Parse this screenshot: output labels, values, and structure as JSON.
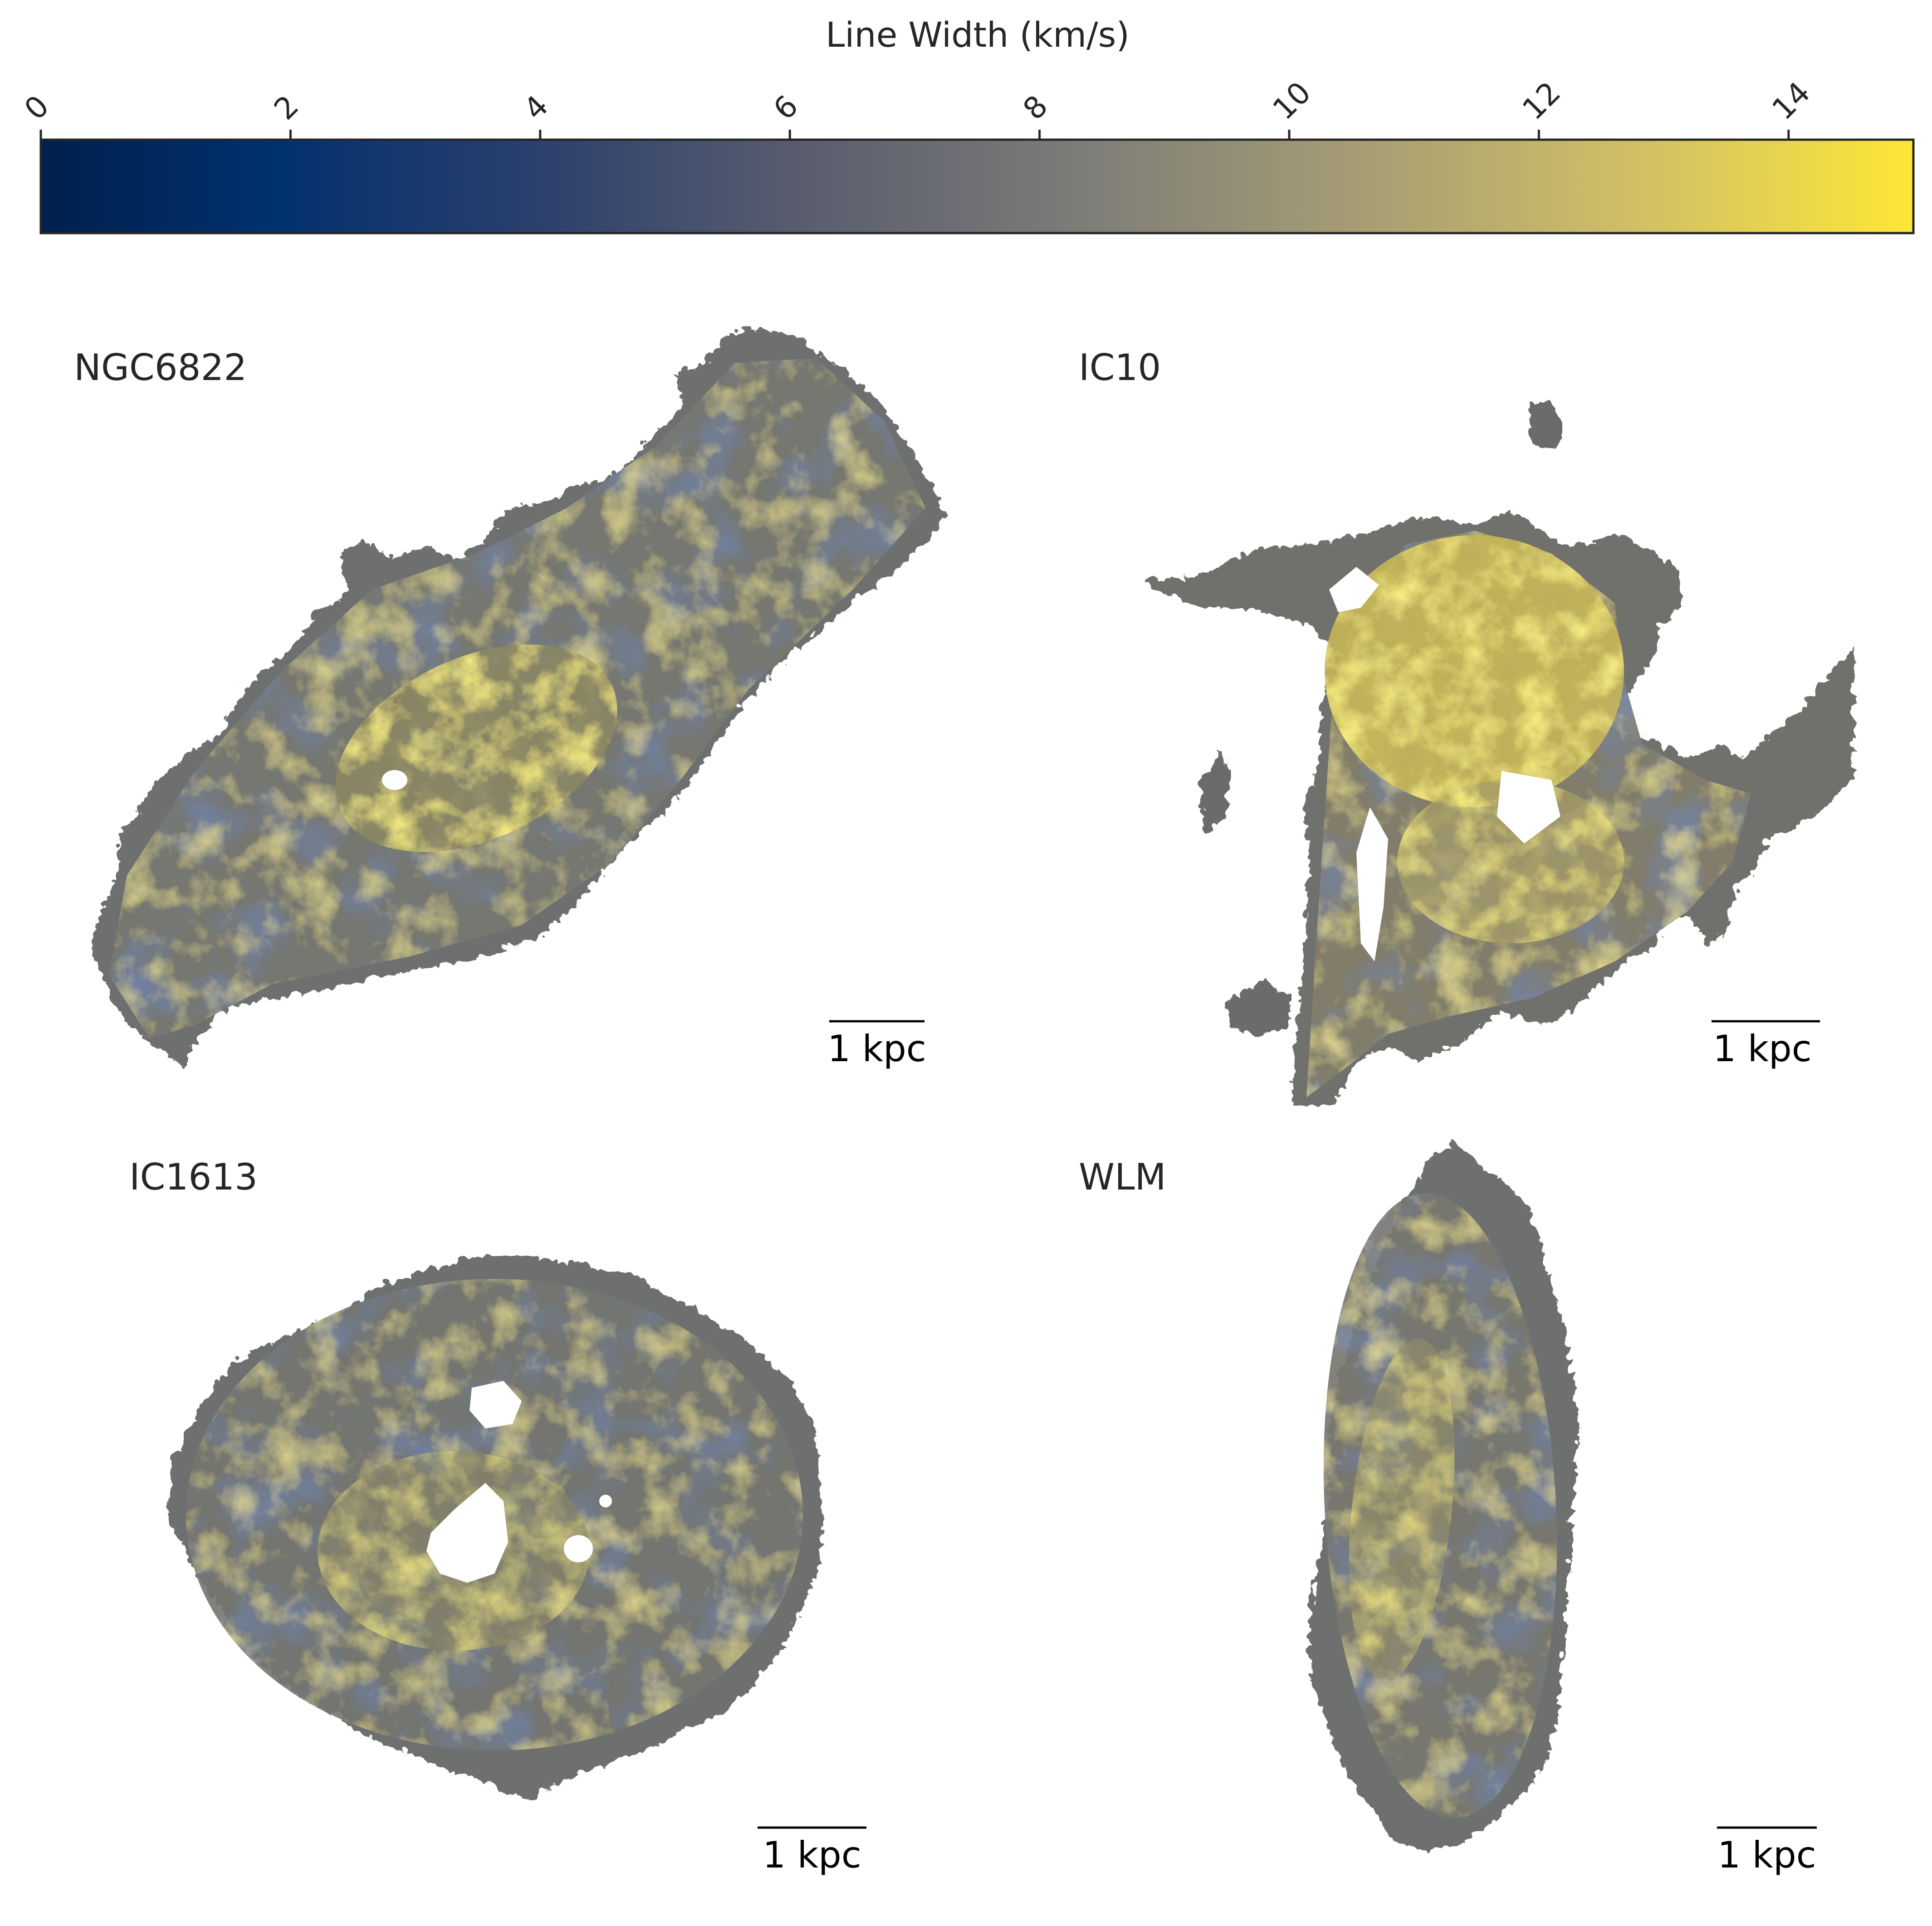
{
  "colorbar": {
    "label": "Line Width (km/s)",
    "ticks": [
      "0",
      "2",
      "4",
      "6",
      "8",
      "10",
      "12",
      "14"
    ],
    "range": [
      0,
      15
    ],
    "colormap": "cividis",
    "colors": [
      "#00204c",
      "#00306f",
      "#2a3f6d",
      "#575c6e",
      "#7c7b78",
      "#a59c74",
      "#d3c164",
      "#fde737"
    ]
  },
  "panels": [
    {
      "name": "NGC6822",
      "scalebar": "1 kpc"
    },
    {
      "name": "IC10",
      "scalebar": "1 kpc"
    },
    {
      "name": "IC1613",
      "scalebar": "1 kpc"
    },
    {
      "name": "WLM",
      "scalebar": "1 kpc"
    }
  ]
}
